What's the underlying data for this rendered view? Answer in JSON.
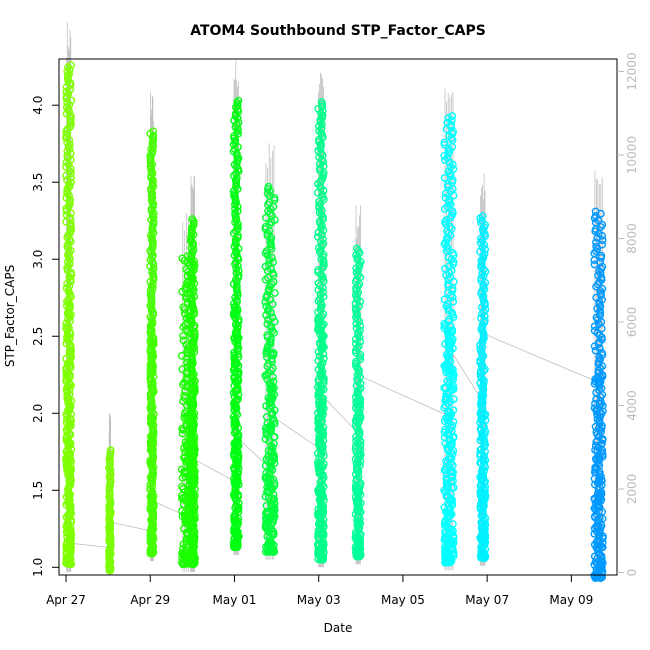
{
  "chart_data": {
    "type": "scatter",
    "title": "ATOM4 Southbound STP_Factor_CAPS",
    "xlabel": "Date",
    "ylabel": "STP_Factor_CAPS",
    "ylim": [
      0.95,
      4.3
    ],
    "y2lim": [
      -60,
      12300
    ],
    "xlim": [
      "2023-04-26 20:00",
      "2023-05-10 02:00"
    ],
    "x_ticks": [
      {
        "date": "2023-04-27 00:00",
        "label": "Apr 27"
      },
      {
        "date": "2023-04-29 00:00",
        "label": "Apr 29"
      },
      {
        "date": "2023-05-01 00:00",
        "label": "May 01"
      },
      {
        "date": "2023-05-03 00:00",
        "label": "May 03"
      },
      {
        "date": "2023-05-05 00:00",
        "label": "May 05"
      },
      {
        "date": "2023-05-07 00:00",
        "label": "May 07"
      },
      {
        "date": "2023-05-09 00:00",
        "label": "May 09"
      }
    ],
    "y_ticks": [
      "1.0",
      "1.5",
      "2.0",
      "2.5",
      "3.0",
      "3.5",
      "4.0"
    ],
    "y2_ticks": [
      "0",
      "2000",
      "4000",
      "6000",
      "8000",
      "10000",
      "12000"
    ],
    "grid": false,
    "legend": "none",
    "series": [
      {
        "start": "2023-04-27 00:00",
        "end": "2023-04-27 03:00",
        "min": 1.02,
        "max": 4.26,
        "color": "#7fff00"
      },
      {
        "start": "2023-04-28 00:30",
        "end": "2023-04-28 01:30",
        "min": 0.98,
        "max": 1.76,
        "color": "#7cfc00"
      },
      {
        "start": "2023-04-29 00:00",
        "end": "2023-04-29 02:00",
        "min": 1.09,
        "max": 3.83,
        "color": "#44ff00"
      },
      {
        "start": "2023-04-29 18:00",
        "end": "2023-04-30 00:30",
        "min": 1.02,
        "max": 3.02,
        "color": "#1aff00"
      },
      {
        "start": "2023-04-29 23:00",
        "end": "2023-04-30 01:30",
        "min": 1.02,
        "max": 3.26,
        "color": "#1aff00"
      },
      {
        "start": "2023-04-30 23:30",
        "end": "2023-05-01 02:30",
        "min": 1.13,
        "max": 4.03,
        "color": "#00ff12"
      },
      {
        "start": "2023-05-01 17:30",
        "end": "2023-05-01 23:00",
        "min": 1.1,
        "max": 3.47,
        "color": "#00ff3a"
      },
      {
        "start": "2023-05-02 23:30",
        "end": "2023-05-03 03:00",
        "min": 1.05,
        "max": 4.02,
        "color": "#00ff8a"
      },
      {
        "start": "2023-05-03 21:00",
        "end": "2023-05-04 00:00",
        "min": 1.07,
        "max": 3.07,
        "color": "#00ff99"
      },
      {
        "start": "2023-05-05 23:30",
        "end": "2023-05-06 05:00",
        "min": 1.03,
        "max": 3.93,
        "color": "#00ffff"
      },
      {
        "start": "2023-05-06 20:00",
        "end": "2023-05-06 23:00",
        "min": 1.06,
        "max": 3.28,
        "color": "#00f0ff"
      },
      {
        "start": "2023-05-09 13:00",
        "end": "2023-05-09 18:00",
        "min": 0.93,
        "max": 3.31,
        "color": "#0099ff"
      }
    ],
    "secondary_line_color": "#c0c0c0"
  }
}
